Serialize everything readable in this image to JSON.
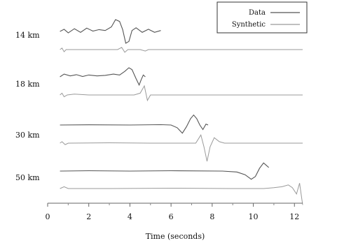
{
  "chart_data": {
    "type": "line",
    "title": "",
    "xlabel": "Time (seconds)",
    "ylabel": "",
    "xlim": [
      0,
      12.4
    ],
    "x_ticks": [
      0,
      2,
      4,
      6,
      8,
      10,
      12
    ],
    "grid": false,
    "legend": {
      "placement": "top-right",
      "entries": [
        {
          "label": "Data",
          "color": "#555555"
        },
        {
          "label": "Synthetic",
          "color": "#9a9a9a"
        }
      ]
    },
    "panels": [
      {
        "label": "14 km",
        "series": [
          {
            "name": "Data",
            "points": [
              [
                0.6,
                0.0
              ],
              [
                0.8,
                0.12
              ],
              [
                1.0,
                -0.08
              ],
              [
                1.3,
                0.15
              ],
              [
                1.6,
                -0.05
              ],
              [
                1.9,
                0.18
              ],
              [
                2.2,
                0.02
              ],
              [
                2.5,
                0.1
              ],
              [
                2.8,
                0.05
              ],
              [
                3.1,
                0.25
              ],
              [
                3.3,
                0.65
              ],
              [
                3.5,
                0.55
              ],
              [
                3.65,
                0.1
              ],
              [
                3.8,
                -0.65
              ],
              [
                3.95,
                -0.55
              ],
              [
                4.1,
                0.05
              ],
              [
                4.3,
                0.2
              ],
              [
                4.6,
                -0.05
              ],
              [
                4.9,
                0.12
              ],
              [
                5.2,
                -0.05
              ],
              [
                5.5,
                0.05
              ]
            ]
          },
          {
            "name": "Synthetic",
            "points": [
              [
                0.6,
                0.0
              ],
              [
                0.7,
                0.08
              ],
              [
                0.8,
                -0.12
              ],
              [
                0.9,
                0.0
              ],
              [
                1.2,
                0.0
              ],
              [
                2.5,
                0.0
              ],
              [
                3.4,
                0.0
              ],
              [
                3.6,
                0.12
              ],
              [
                3.75,
                -0.15
              ],
              [
                3.9,
                0.0
              ],
              [
                4.5,
                0.0
              ],
              [
                4.75,
                -0.08
              ],
              [
                4.9,
                0.0
              ],
              [
                6,
                0.0
              ],
              [
                12.4,
                0.0
              ]
            ]
          }
        ]
      },
      {
        "label": "18 km",
        "series": [
          {
            "name": "Data",
            "points": [
              [
                0.6,
                0.0
              ],
              [
                0.8,
                0.15
              ],
              [
                1.1,
                0.05
              ],
              [
                1.4,
                0.12
              ],
              [
                1.7,
                0.02
              ],
              [
                2.0,
                0.1
              ],
              [
                2.4,
                0.05
              ],
              [
                2.8,
                0.08
              ],
              [
                3.2,
                0.15
              ],
              [
                3.5,
                0.1
              ],
              [
                3.75,
                0.3
              ],
              [
                3.95,
                0.5
              ],
              [
                4.1,
                0.4
              ],
              [
                4.3,
                -0.1
              ],
              [
                4.45,
                -0.45
              ],
              [
                4.55,
                -0.15
              ],
              [
                4.65,
                0.1
              ],
              [
                4.75,
                0.0
              ]
            ]
          },
          {
            "name": "Synthetic",
            "points": [
              [
                0.6,
                0.0
              ],
              [
                0.7,
                0.1
              ],
              [
                0.8,
                -0.1
              ],
              [
                0.95,
                0.0
              ],
              [
                1.3,
                0.05
              ],
              [
                2.0,
                0.0
              ],
              [
                3.0,
                0.0
              ],
              [
                4.2,
                0.0
              ],
              [
                4.5,
                0.1
              ],
              [
                4.7,
                0.5
              ],
              [
                4.85,
                -0.3
              ],
              [
                5.0,
                0.0
              ],
              [
                6,
                0.0
              ],
              [
                12.4,
                0.0
              ]
            ]
          }
        ]
      },
      {
        "label": "30 km",
        "series": [
          {
            "name": "Data",
            "points": [
              [
                0.6,
                0.0
              ],
              [
                2.0,
                0.01
              ],
              [
                4.0,
                0.0
              ],
              [
                5.5,
                0.02
              ],
              [
                6.0,
                0.0
              ],
              [
                6.3,
                -0.15
              ],
              [
                6.55,
                -0.45
              ],
              [
                6.75,
                -0.1
              ],
              [
                6.95,
                0.35
              ],
              [
                7.1,
                0.55
              ],
              [
                7.25,
                0.35
              ],
              [
                7.4,
                0.0
              ],
              [
                7.55,
                -0.25
              ],
              [
                7.7,
                0.05
              ],
              [
                7.8,
                0.0
              ]
            ]
          },
          {
            "name": "Synthetic",
            "points": [
              [
                0.6,
                0.0
              ],
              [
                0.7,
                0.08
              ],
              [
                0.85,
                -0.08
              ],
              [
                1.0,
                0.0
              ],
              [
                3.0,
                0.02
              ],
              [
                5.0,
                0.0
              ],
              [
                6.5,
                0.0
              ],
              [
                7.2,
                0.0
              ],
              [
                7.45,
                0.45
              ],
              [
                7.6,
                -0.2
              ],
              [
                7.75,
                -1.0
              ],
              [
                7.9,
                -0.2
              ],
              [
                8.1,
                0.3
              ],
              [
                8.35,
                0.08
              ],
              [
                8.6,
                0.0
              ],
              [
                12.4,
                0.0
              ]
            ]
          }
        ]
      },
      {
        "label": "50 km",
        "series": [
          {
            "name": "Data",
            "points": [
              [
                0.6,
                0.0
              ],
              [
                2.0,
                0.02
              ],
              [
                4.0,
                0.0
              ],
              [
                6.0,
                0.02
              ],
              [
                8.5,
                0.0
              ],
              [
                9.2,
                -0.05
              ],
              [
                9.6,
                -0.2
              ],
              [
                9.9,
                -0.45
              ],
              [
                10.1,
                -0.3
              ],
              [
                10.3,
                0.15
              ],
              [
                10.5,
                0.45
              ],
              [
                10.65,
                0.3
              ],
              [
                10.75,
                0.2
              ]
            ]
          },
          {
            "name": "Synthetic",
            "points": [
              [
                0.6,
                0.0
              ],
              [
                0.8,
                0.1
              ],
              [
                1.0,
                0.0
              ],
              [
                3.0,
                0.0
              ],
              [
                6.0,
                0.02
              ],
              [
                9.0,
                0.0
              ],
              [
                10.5,
                0.0
              ],
              [
                11.0,
                0.05
              ],
              [
                11.4,
                0.1
              ],
              [
                11.7,
                0.2
              ],
              [
                11.9,
                0.05
              ],
              [
                12.1,
                -0.3
              ],
              [
                12.25,
                0.3
              ],
              [
                12.35,
                -0.5
              ],
              [
                12.4,
                -0.9
              ]
            ]
          }
        ]
      }
    ]
  }
}
